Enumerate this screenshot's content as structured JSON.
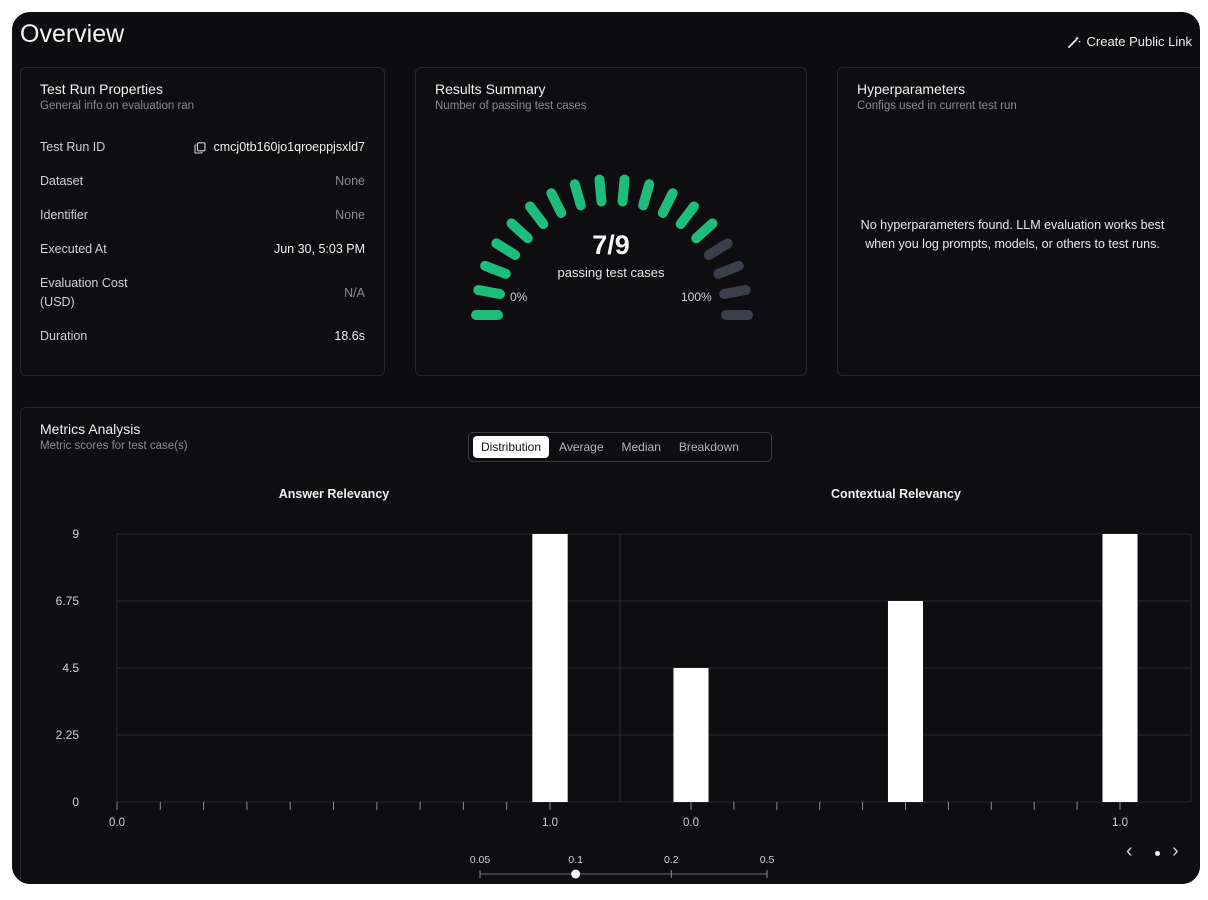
{
  "header": {
    "title": "Overview",
    "public_link_label": "Create Public Link"
  },
  "properties": {
    "title": "Test Run Properties",
    "subtitle": "General info on evaluation ran",
    "rows": [
      {
        "label": "Test Run ID",
        "value": "cmcj0tb160jo1qroeppjsxld7"
      },
      {
        "label": "Dataset",
        "value": "None"
      },
      {
        "label": "Identifier",
        "value": "None"
      },
      {
        "label": "Executed At",
        "value": "Jun 30, 5:03 PM"
      },
      {
        "label_line1": "Evaluation Cost",
        "label_line2": "(USD)",
        "value": "N/A"
      },
      {
        "label": "Duration",
        "value": "18.6s"
      }
    ]
  },
  "results": {
    "title": "Results Summary",
    "subtitle": "Number of passing test cases",
    "score": "7/9",
    "score_label": "passing test cases",
    "min_label": "0%",
    "max_label": "100%",
    "passed": 7,
    "total": 9,
    "colors": {
      "pass": "#1dbd7c",
      "fail": "#3a3f4b"
    }
  },
  "hyperparameters": {
    "title": "Hyperparameters",
    "subtitle": "Configs used in current test run",
    "empty_line1": "No hyperparameters found. LLM evaluation works best",
    "empty_line2": "when you log prompts, models, or others to test runs."
  },
  "metrics": {
    "title": "Metrics Analysis",
    "subtitle": "Metric scores for test case(s)",
    "tabs": [
      "Distribution",
      "Average",
      "Median",
      "Breakdown"
    ],
    "active_tab": "Distribution"
  },
  "chart_data": [
    {
      "type": "bar",
      "title": "Answer Relevancy",
      "x_ticks": [
        "0.0",
        "1.0"
      ],
      "y_ticks": [
        "0",
        "2.25",
        "4.5",
        "6.75",
        "9"
      ],
      "ylim": [
        0,
        9
      ],
      "bin_width": 0.1,
      "bars": [
        {
          "x": 1.0,
          "value": 9
        }
      ]
    },
    {
      "type": "bar",
      "title": "Contextual Relevancy",
      "x_ticks": [
        "0.0",
        "1.0"
      ],
      "ylim": [
        0,
        9
      ],
      "bin_width": 0.1,
      "bars": [
        {
          "x": 0.0,
          "value": 4.5
        },
        {
          "x": 0.5,
          "value": 6.75
        },
        {
          "x": 1.0,
          "value": 9
        }
      ]
    }
  ],
  "bin_slider": {
    "options": [
      "0.05",
      "0.1",
      "0.2",
      "0.5"
    ],
    "selected": "0.1"
  },
  "pager": {
    "current": 1,
    "pages": 1
  }
}
